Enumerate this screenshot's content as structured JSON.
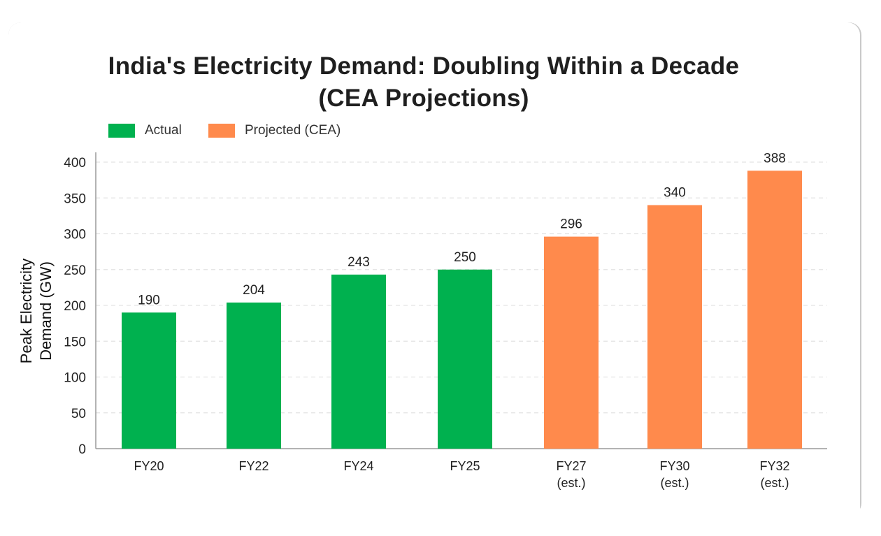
{
  "title_lines": [
    "India's Electricity Demand: Doubling Within a Decade",
    "(CEA Projections)"
  ],
  "legend": [
    {
      "label": "Actual",
      "color": "#00b14f"
    },
    {
      "label": "Projected (CEA)",
      "color": "#ff8a4c"
    }
  ],
  "colors": {
    "actual": "#00b14f",
    "projected": "#ff8a4c",
    "grid": "#e3e3e3",
    "axis": "#9a9a9a"
  },
  "chart_data": {
    "type": "bar",
    "title": "India's Electricity Demand: Doubling Within a Decade (CEA Projections)",
    "ylabel": "Peak Electricity Demand (GW)",
    "ylabel_lines": [
      "Peak Electricity",
      "Demand (GW)"
    ],
    "xlabel": "",
    "ylim": [
      0,
      400
    ],
    "yticks": [
      0,
      50,
      100,
      150,
      200,
      250,
      300,
      350,
      400
    ],
    "grid": true,
    "legend_position": "top-left",
    "categories": [
      "FY20",
      "FY22",
      "FY24",
      "FY25",
      "FY27 (est.)",
      "FY30 (est.)",
      "FY32 (est.)"
    ],
    "category_lines": [
      [
        "FY20"
      ],
      [
        "FY22"
      ],
      [
        "FY24"
      ],
      [
        "FY25"
      ],
      [
        "FY27",
        "(est.)"
      ],
      [
        "FY30",
        "(est.)"
      ],
      [
        "FY32",
        "(est.)"
      ]
    ],
    "series": [
      {
        "name": "Actual",
        "values": [
          190,
          204,
          243,
          250,
          null,
          null,
          null
        ]
      },
      {
        "name": "Projected (CEA)",
        "values": [
          null,
          null,
          null,
          null,
          296,
          340,
          388
        ]
      }
    ],
    "values": [
      190,
      204,
      243,
      250,
      296,
      340,
      388
    ],
    "kinds": [
      "actual",
      "actual",
      "actual",
      "actual",
      "projected",
      "projected",
      "projected"
    ],
    "data_labels": [
      "190",
      "204",
      "243",
      "250",
      "296",
      "340",
      "388"
    ]
  }
}
